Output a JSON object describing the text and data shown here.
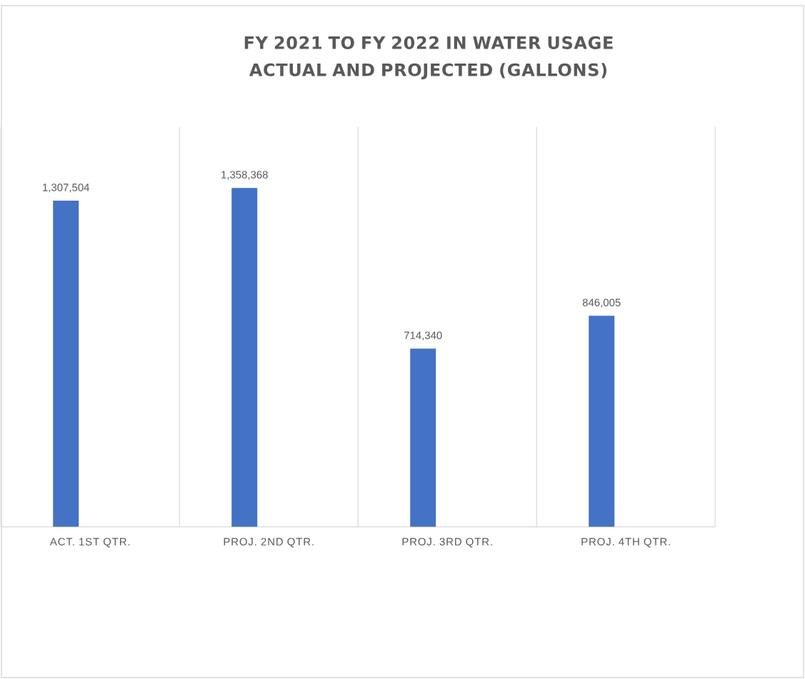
{
  "chart_data": {
    "type": "bar",
    "title": "FY 2021 TO FY 2022 IN WATER USAGE ACTUAL AND PROJECTED (GALLONS)",
    "categories": [
      "ACT. 1ST QTR.",
      "PROJ. 2ND QTR.",
      "PROJ. 3RD QTR.",
      "PROJ. 4TH QTR."
    ],
    "values": [
      1307504,
      1358368,
      714340,
      846005
    ],
    "value_labels": [
      "1,307,504",
      "1,358,368",
      "714,340",
      "846,005"
    ],
    "color": "#4472c4",
    "grid": "x"
  }
}
